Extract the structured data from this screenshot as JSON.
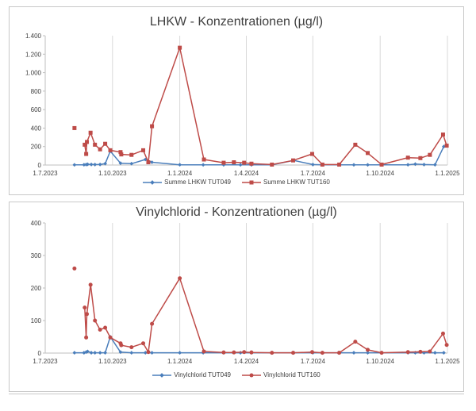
{
  "chart_data": [
    {
      "type": "line",
      "title": "LHKW - Konzentrationen (µg/l)",
      "xlabel": "",
      "ylabel": "",
      "xlim": [
        "2023-07-01",
        "2025-01-01"
      ],
      "ylim": [
        0,
        1400
      ],
      "x_ticks": [
        "2023-07-01",
        "2023-10-01",
        "2024-01-01",
        "2024-04-01",
        "2024-07-01",
        "2024-10-01",
        "2025-01-01"
      ],
      "x_tick_labels": [
        "1.7.2023",
        "1.10.2023",
        "1.1.2024",
        "1.4.2024",
        "1.7.2024",
        "1.10.2024",
        "1.1.2025"
      ],
      "y_ticks": [
        0,
        200,
        400,
        600,
        800,
        1000,
        1200,
        1400
      ],
      "y_tick_labels": [
        "0",
        "200",
        "400",
        "600",
        "800",
        "1.000",
        "1.200",
        "1.400"
      ],
      "grid": "vertical",
      "legend": "bottom",
      "series": [
        {
          "name": "Summe LHKW TUT049",
          "color": "#4a7ebb",
          "marker": "diamond",
          "connected": true,
          "points": [
            [
              "2023-08-10",
              2
            ],
            [
              "2023-08-23",
              3
            ],
            [
              "2023-08-26",
              5
            ],
            [
              "2023-08-28",
              8
            ],
            [
              "2023-09-02",
              6
            ],
            [
              "2023-09-07",
              5
            ],
            [
              "2023-09-14",
              6
            ],
            [
              "2023-09-21",
              15
            ],
            [
              "2023-09-28",
              150
            ],
            [
              "2023-10-12",
              20
            ],
            [
              "2023-10-27",
              15
            ],
            [
              "2023-11-15",
              60
            ],
            [
              "2023-11-24",
              30
            ],
            [
              "2024-01-01",
              3
            ],
            [
              "2024-02-02",
              2
            ],
            [
              "2024-03-01",
              2
            ],
            [
              "2024-03-24",
              2
            ],
            [
              "2024-04-08",
              2
            ],
            [
              "2024-05-06",
              2
            ],
            [
              "2024-06-05",
              50
            ],
            [
              "2024-07-01",
              5
            ],
            [
              "2024-07-14",
              2
            ],
            [
              "2024-08-05",
              2
            ],
            [
              "2024-08-26",
              2
            ],
            [
              "2024-09-14",
              2
            ],
            [
              "2024-10-03",
              2
            ],
            [
              "2024-11-08",
              3
            ],
            [
              "2024-11-18",
              10
            ],
            [
              "2024-11-30",
              5
            ],
            [
              "2024-12-15",
              3
            ],
            [
              "2024-12-27",
              200
            ]
          ]
        },
        {
          "name": "Summe LHKW TUT160",
          "color": "#be4b48",
          "marker": "square",
          "connected_from_index": 1,
          "points": [
            [
              "2023-08-10",
              400
            ],
            [
              "2023-08-24",
              220
            ],
            [
              "2023-08-26",
              120
            ],
            [
              "2023-08-27",
              250
            ],
            [
              "2023-09-01",
              350
            ],
            [
              "2023-09-07",
              220
            ],
            [
              "2023-09-14",
              170
            ],
            [
              "2023-09-21",
              230
            ],
            [
              "2023-09-28",
              160
            ],
            [
              "2023-10-12",
              140
            ],
            [
              "2023-10-13",
              115
            ],
            [
              "2023-10-27",
              110
            ],
            [
              "2023-11-12",
              160
            ],
            [
              "2023-11-19",
              30
            ],
            [
              "2023-11-24",
              420
            ],
            [
              "2024-01-01",
              1270
            ],
            [
              "2024-02-03",
              60
            ],
            [
              "2024-03-01",
              25
            ],
            [
              "2024-03-15",
              30
            ],
            [
              "2024-03-29",
              25
            ],
            [
              "2024-04-08",
              15
            ],
            [
              "2024-05-06",
              5
            ],
            [
              "2024-06-04",
              50
            ],
            [
              "2024-06-30",
              120
            ],
            [
              "2024-07-14",
              5
            ],
            [
              "2024-08-06",
              5
            ],
            [
              "2024-08-28",
              220
            ],
            [
              "2024-09-14",
              130
            ],
            [
              "2024-10-03",
              5
            ],
            [
              "2024-11-08",
              80
            ],
            [
              "2024-11-25",
              75
            ],
            [
              "2024-12-08",
              110
            ],
            [
              "2024-12-26",
              330
            ],
            [
              "2024-12-31",
              210
            ]
          ]
        }
      ]
    },
    {
      "type": "line",
      "title": "Vinylchlorid - Konzentrationen (µg/l)",
      "xlabel": "",
      "ylabel": "",
      "xlim": [
        "2023-07-01",
        "2025-01-01"
      ],
      "ylim": [
        0,
        400
      ],
      "x_ticks": [
        "2023-07-01",
        "2023-10-01",
        "2024-01-01",
        "2024-04-01",
        "2024-07-01",
        "2024-10-01",
        "2025-01-01"
      ],
      "x_tick_labels": [
        "1.7.2023",
        "1.10.2023",
        "1.1.2024",
        "1.4.2024",
        "1.7.2024",
        "1.10.2024",
        "1.1.2025"
      ],
      "y_ticks": [
        0,
        100,
        200,
        300,
        400
      ],
      "y_tick_labels": [
        "0",
        "100",
        "200",
        "300",
        "400"
      ],
      "grid": "vertical",
      "legend": "bottom",
      "series": [
        {
          "name": "Vinylchlorid TUT049",
          "color": "#4a7ebb",
          "marker": "diamond",
          "connected": true,
          "points": [
            [
              "2023-08-10",
              1
            ],
            [
              "2023-08-23",
              1
            ],
            [
              "2023-08-26",
              3
            ],
            [
              "2023-08-28",
              5
            ],
            [
              "2023-09-02",
              1
            ],
            [
              "2023-09-07",
              1
            ],
            [
              "2023-09-14",
              1
            ],
            [
              "2023-09-21",
              1
            ],
            [
              "2023-09-28",
              50
            ],
            [
              "2023-10-12",
              3
            ],
            [
              "2023-10-27",
              1
            ],
            [
              "2023-11-15",
              1
            ],
            [
              "2023-11-24",
              1
            ],
            [
              "2024-01-01",
              1
            ],
            [
              "2024-02-02",
              1
            ],
            [
              "2024-03-01",
              1
            ],
            [
              "2024-03-24",
              1
            ],
            [
              "2024-04-08",
              1
            ],
            [
              "2024-05-06",
              1
            ],
            [
              "2024-06-05",
              1
            ],
            [
              "2024-07-01",
              1
            ],
            [
              "2024-07-14",
              1
            ],
            [
              "2024-08-05",
              1
            ],
            [
              "2024-08-26",
              1
            ],
            [
              "2024-09-14",
              1
            ],
            [
              "2024-10-03",
              1
            ],
            [
              "2024-11-08",
              1
            ],
            [
              "2024-11-18",
              1
            ],
            [
              "2024-11-30",
              1
            ],
            [
              "2024-12-15",
              1
            ],
            [
              "2024-12-27",
              1
            ]
          ]
        },
        {
          "name": "Vinylchlorid TUT160",
          "color": "#be4b48",
          "marker": "circle",
          "connected_from_index": 1,
          "points": [
            [
              "2023-08-10",
              260
            ],
            [
              "2023-08-24",
              140
            ],
            [
              "2023-08-26",
              48
            ],
            [
              "2023-08-27",
              120
            ],
            [
              "2023-09-01",
              210
            ],
            [
              "2023-09-07",
              100
            ],
            [
              "2023-09-14",
              72
            ],
            [
              "2023-09-21",
              78
            ],
            [
              "2023-09-28",
              48
            ],
            [
              "2023-10-12",
              30
            ],
            [
              "2023-10-13",
              24
            ],
            [
              "2023-10-27",
              18
            ],
            [
              "2023-11-12",
              30
            ],
            [
              "2023-11-19",
              3
            ],
            [
              "2023-11-24",
              90
            ],
            [
              "2024-01-01",
              230
            ],
            [
              "2024-02-03",
              5
            ],
            [
              "2024-03-01",
              2
            ],
            [
              "2024-03-15",
              2
            ],
            [
              "2024-03-29",
              3
            ],
            [
              "2024-04-08",
              2
            ],
            [
              "2024-05-06",
              1
            ],
            [
              "2024-06-04",
              1
            ],
            [
              "2024-06-30",
              3
            ],
            [
              "2024-07-14",
              1
            ],
            [
              "2024-08-06",
              1
            ],
            [
              "2024-08-28",
              35
            ],
            [
              "2024-09-14",
              10
            ],
            [
              "2024-10-03",
              1
            ],
            [
              "2024-11-08",
              3
            ],
            [
              "2024-11-25",
              4
            ],
            [
              "2024-12-08",
              5
            ],
            [
              "2024-12-26",
              60
            ],
            [
              "2024-12-31",
              25
            ]
          ]
        }
      ]
    }
  ]
}
